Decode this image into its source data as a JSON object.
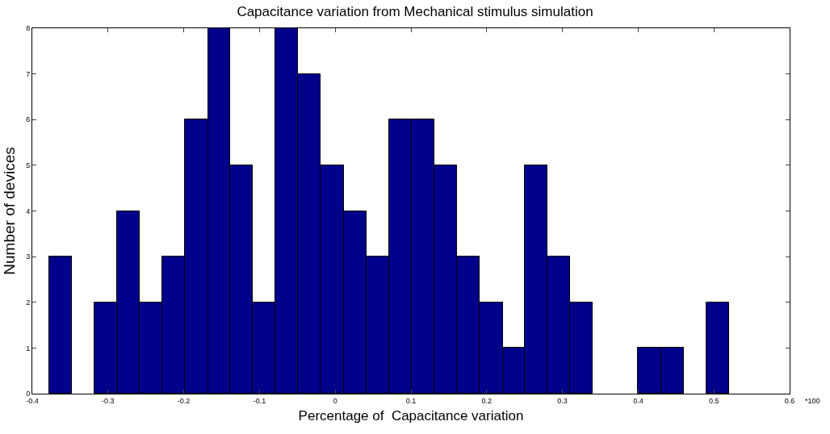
{
  "chart_data": {
    "type": "histogram",
    "title": "Capacitance variation from Mechanical stimulus simulation",
    "xlabel": "Percentage of  Capacitance variation",
    "ylabel": "Number of devices",
    "annotations": [
      "*100"
    ],
    "bins": [
      -0.378,
      -0.348,
      -0.318,
      -0.288,
      -0.258,
      -0.228,
      -0.198,
      -0.168,
      -0.139,
      -0.109,
      -0.079,
      -0.049,
      -0.019,
      0.011,
      0.041,
      0.071,
      0.101,
      0.131,
      0.161,
      0.191,
      0.221,
      0.25,
      0.28,
      0.31,
      0.34,
      0.4,
      0.43,
      0.46,
      0.49,
      0.52
    ],
    "values": [
      3,
      0,
      2,
      4,
      2,
      3,
      6,
      8,
      5,
      2,
      8,
      7,
      5,
      4,
      3,
      6,
      6,
      5,
      3,
      2,
      1,
      5,
      3,
      2,
      0,
      1,
      1,
      0,
      2
    ],
    "color": "#00008b",
    "xlim": [
      -0.4,
      0.6
    ],
    "xticks": [
      -0.4,
      -0.3,
      -0.2,
      -0.1,
      0,
      0.1,
      0.2,
      0.3,
      0.4,
      0.5,
      0.6
    ],
    "ylim": [
      0,
      8
    ],
    "yticks": [
      0,
      1,
      2,
      3,
      4,
      5,
      6,
      7,
      8
    ]
  }
}
